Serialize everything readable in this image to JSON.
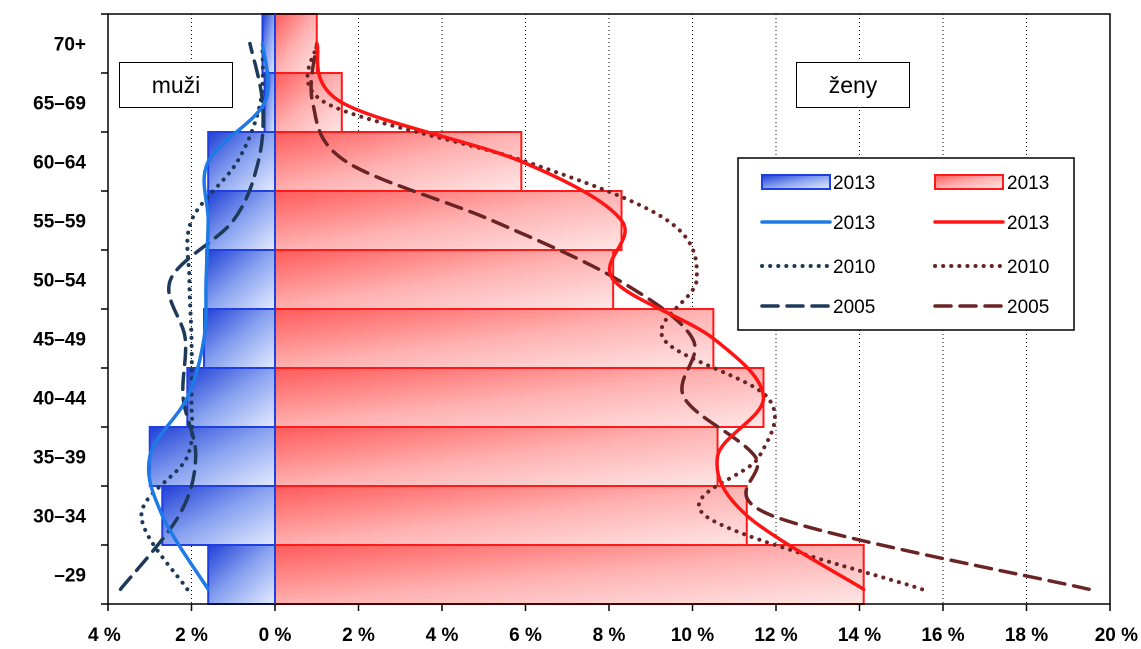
{
  "labels": {
    "men": "muži",
    "women": "ženy"
  },
  "chart_data": {
    "type": "bar",
    "x_ticks": [
      "4 %",
      "2 %",
      "0 %",
      "2 %",
      "4 %",
      "6 %",
      "8 %",
      "10 %",
      "12 %",
      "14 %",
      "16 %",
      "18 %",
      "20 %"
    ],
    "xlim": [
      -4,
      20
    ],
    "categories": [
      "–29",
      "30–34",
      "35–39",
      "40–44",
      "45–49",
      "50–54",
      "55–59",
      "60–64",
      "65–69",
      "70+"
    ],
    "series": [
      {
        "name": "2013",
        "group": "men",
        "style": "bar",
        "color": "#1f3fcc",
        "values": [
          1.6,
          2.7,
          3.0,
          2.1,
          1.7,
          1.65,
          1.6,
          1.6,
          0.25,
          0.3
        ]
      },
      {
        "name": "2013",
        "group": "women",
        "style": "bar",
        "color": "#ff2020",
        "values": [
          14.1,
          11.3,
          10.6,
          11.7,
          10.5,
          8.1,
          8.3,
          5.9,
          1.6,
          1.0
        ]
      },
      {
        "name": "2013",
        "group": "men",
        "style": "solid",
        "color": "#1e7ae6",
        "values": [
          1.6,
          2.7,
          3.0,
          2.1,
          1.7,
          1.65,
          1.6,
          1.6,
          0.25,
          0.3
        ]
      },
      {
        "name": "2013",
        "group": "women",
        "style": "solid",
        "color": "#ff1414",
        "values": [
          14.1,
          11.3,
          10.6,
          11.7,
          10.5,
          8.1,
          8.3,
          5.9,
          1.6,
          1.0
        ]
      },
      {
        "name": "2010",
        "group": "men",
        "style": "dotted",
        "color": "#1e3a5a",
        "values": [
          2.1,
          3.2,
          2.1,
          2.0,
          2.0,
          2.05,
          2.0,
          0.9,
          0.35,
          0.3
        ]
      },
      {
        "name": "2010",
        "group": "women",
        "style": "dotted",
        "color": "#6b2424",
        "values": [
          15.5,
          10.3,
          11.6,
          11.8,
          9.3,
          10.1,
          9.4,
          6.0,
          1.2,
          1.0
        ]
      },
      {
        "name": "2005",
        "group": "men",
        "style": "dashed",
        "color": "#1e3a5a",
        "values": [
          3.7,
          2.3,
          1.9,
          2.2,
          2.15,
          2.5,
          1.0,
          0.4,
          0.3,
          0.6
        ]
      },
      {
        "name": "2005",
        "group": "women",
        "style": "dashed",
        "color": "#6b2424",
        "values": [
          19.5,
          11.9,
          11.5,
          9.8,
          10.0,
          8.2,
          5.2,
          1.7,
          0.9,
          1.0
        ]
      }
    ],
    "legend": {
      "placement": "right",
      "rows": [
        {
          "left": "2013",
          "right": "2013"
        },
        {
          "left": "2013",
          "right": "2013"
        },
        {
          "left": "2010",
          "right": "2010"
        },
        {
          "left": "2005",
          "right": "2005"
        }
      ]
    },
    "grid": "vertical dotted"
  }
}
